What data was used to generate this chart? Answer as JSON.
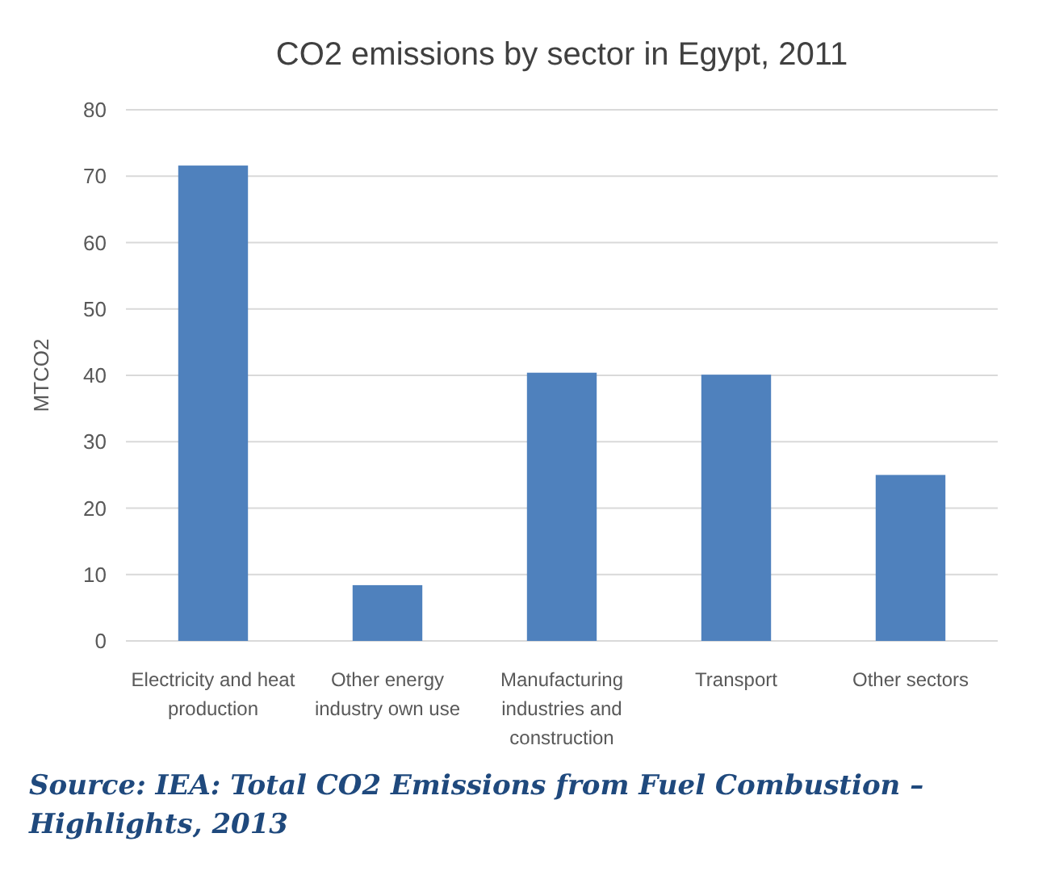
{
  "chart_data": {
    "type": "bar",
    "title": "CO2 emissions by sector in Egypt, 2011",
    "ylabel": "MTCO2",
    "categories": [
      "Electricity and heat production",
      "Other energy industry own use",
      "Manufacturing industries and construction",
      "Transport",
      "Other sectors"
    ],
    "values": [
      71.6,
      8.4,
      40.4,
      40.1,
      25
    ],
    "color": "#4f81bd",
    "ylim": [
      0,
      80
    ],
    "yticks": [
      0,
      10,
      20,
      30,
      40,
      50,
      60,
      70,
      80
    ],
    "grid": "y",
    "annotations": [
      "Source: IEA: Total CO2 Emissions from Fuel Combustion – Highlights, 2013"
    ]
  }
}
